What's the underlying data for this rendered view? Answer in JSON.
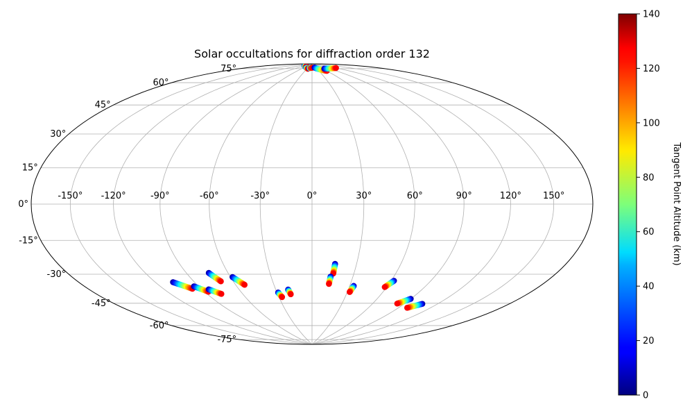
{
  "chart_data": {
    "type": "scatter",
    "projection": "hammer",
    "title": "Solar occultations for diffraction order 132",
    "grid": true,
    "lon_ticks": [
      -150,
      -120,
      -90,
      -60,
      -30,
      0,
      30,
      60,
      90,
      120,
      150
    ],
    "lon_tick_labels": [
      "-150°",
      "-120°",
      "-90°",
      "-60°",
      "-30°",
      "0°",
      "30°",
      "60°",
      "90°",
      "120°",
      "150°"
    ],
    "lat_ticks": [
      75,
      60,
      45,
      30,
      15,
      0,
      -15,
      -30,
      -45,
      -60,
      -75
    ],
    "lat_tick_labels": [
      "75°",
      "60°",
      "45°",
      "30°",
      "15°",
      "0°",
      "-15°",
      "-30°",
      "-45°",
      "-60°",
      "-75°"
    ],
    "colorbar": {
      "label": "Tangent Point Altitude (km)",
      "colormap": "jet",
      "min": 0,
      "max": 140,
      "ticks": [
        0,
        20,
        40,
        60,
        80,
        100,
        120,
        140
      ],
      "tick_labels": [
        "0",
        "20",
        "40",
        "60",
        "80",
        "100",
        "120",
        "140"
      ]
    },
    "series": [
      {
        "lon_start": -106.4,
        "lat_start": -42.0,
        "lon_end": -97.0,
        "lat_end": -46.7
      },
      {
        "lon_start": -93.7,
        "lat_start": -45.5,
        "lon_end": -86.8,
        "lat_end": -49.3
      },
      {
        "lon_start": -84.5,
        "lat_start": -48.0,
        "lon_end": -78.0,
        "lat_end": -51.3
      },
      {
        "lon_start": -73.8,
        "lat_start": -38.7,
        "lon_end": -69.4,
        "lat_end": -44.0
      },
      {
        "lon_start": -58.5,
        "lat_start": -41.9,
        "lon_end": -53.0,
        "lat_end": -46.9
      },
      {
        "lon_start": -29.0,
        "lat_start": -52.6,
        "lon_end": -27.2,
        "lat_end": -55.6
      },
      {
        "lon_start": -19.8,
        "lat_start": -50.9,
        "lon_end": -18.6,
        "lat_end": -53.9
      },
      {
        "lon_start": 15.5,
        "lat_start": -35.0,
        "lon_end": 15.2,
        "lat_end": -40.9
      },
      {
        "lon_start": 13.6,
        "lat_start": -42.8,
        "lon_end": 13.2,
        "lat_end": -47.4
      },
      {
        "lon_start": 33.2,
        "lat_start": -48.3,
        "lon_end": 32.0,
        "lat_end": -52.2
      },
      {
        "lon_start": 62.1,
        "lat_start": -44.0,
        "lon_end": 58.4,
        "lat_end": -48.1
      },
      {
        "lon_start": 89.8,
        "lat_start": -53.6,
        "lon_end": 83.2,
        "lat_end": -57.2
      },
      {
        "lon_start": 106.4,
        "lat_start": -55.4,
        "lon_end": 98.4,
        "lat_end": -58.8
      },
      {
        "lon_start": -90.0,
        "lat_start": 87.8,
        "lon_end": -60.0,
        "lat_end": 87.6
      },
      {
        "lon_start": -45.0,
        "lat_start": 86.8,
        "lon_end": -25.0,
        "lat_end": 86.0
      },
      {
        "lon_start": -20.0,
        "lat_start": 86.5,
        "lon_end": -8.0,
        "lat_end": 86.8
      },
      {
        "lon_start": -5.0,
        "lat_start": 87.2,
        "lon_end": 0.0,
        "lat_end": 86.9
      },
      {
        "lon_start": 20.0,
        "lat_start": 87.0,
        "lon_end": 60.0,
        "lat_end": 83.7
      },
      {
        "lon_start": 70.0,
        "lat_start": 85.5,
        "lon_end": 120.0,
        "lat_end": 84.2
      }
    ]
  }
}
